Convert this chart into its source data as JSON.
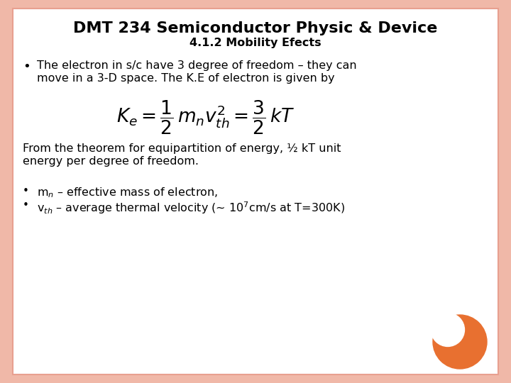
{
  "title": "DMT 234 Semiconductor Physic & Device",
  "subtitle": "4.1.2 Mobility Efects",
  "bg_color": "#FFFFFF",
  "border_color": "#E8A090",
  "slide_bg": "#F0B8A8",
  "title_fontsize": 16,
  "subtitle_fontsize": 11.5,
  "body_fontsize": 11.5,
  "bullet1_line1": "The electron in s/c have 3 degree of freedom – they can",
  "bullet1_line2": "move in a 3-D space. The K.E of electron is given by",
  "equation": "$K_e = \\dfrac{1}{2}\\,m_n v_{th}^2 = \\dfrac{3}{2}\\,kT$",
  "from_theorem_line1": "From the theorem for equipartition of energy, ½ kT unit",
  "from_theorem_line2": "energy per degree of freedom.",
  "bullet2": "m$_n$ – effective mass of electron,",
  "bullet3": "v$_{th}$ – average thermal velocity (~ 10$^7$cm/s at T=300K)",
  "orange_color": "#E87030"
}
